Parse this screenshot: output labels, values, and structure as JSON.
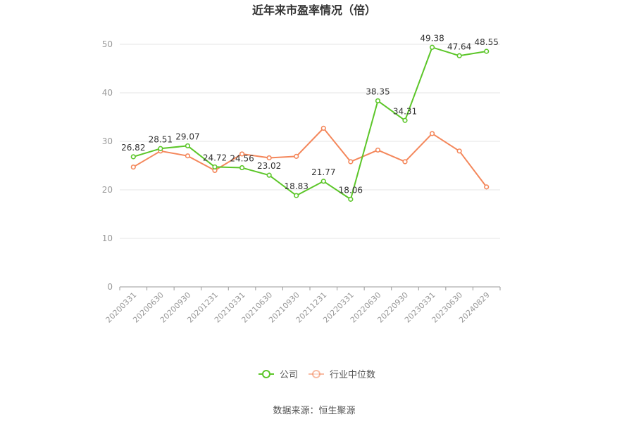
{
  "colors": {
    "company": "#5cc629",
    "industry": "#f4875b",
    "grid": "#e6e6e6",
    "axis": "#999999"
  },
  "chart_data": {
    "type": "line",
    "title": "近年来市盈率情况（倍）",
    "categories": [
      "20200331",
      "20200630",
      "20200930",
      "20201231",
      "20210331",
      "20210630",
      "20210930",
      "20211231",
      "20220331",
      "20220630",
      "20220930",
      "20230331",
      "20230630",
      "20240829"
    ],
    "series": [
      {
        "name": "公司",
        "values": [
          26.82,
          28.51,
          29.07,
          24.72,
          24.56,
          23.02,
          18.83,
          21.77,
          18.06,
          38.35,
          34.31,
          49.38,
          47.64,
          48.55
        ],
        "labels": [
          "26.82",
          "28.51",
          "29.07",
          "24.72",
          "24.56",
          "23.02",
          "18.83",
          "21.77",
          "18.06",
          "38.35",
          "34.31",
          "49.38",
          "47.64",
          "48.55"
        ]
      },
      {
        "name": "行业中位数",
        "values": [
          24.7,
          28.0,
          27.0,
          24.0,
          27.4,
          26.6,
          26.9,
          32.7,
          25.8,
          28.2,
          25.8,
          31.6,
          28.0,
          20.6
        ]
      }
    ],
    "yticks": [
      "0",
      "10",
      "20",
      "30",
      "40",
      "50"
    ],
    "ylim": [
      0,
      50
    ],
    "grid": true,
    "legend": "bottom-center"
  },
  "footer": {
    "source": "数据来源：恒生聚源"
  }
}
